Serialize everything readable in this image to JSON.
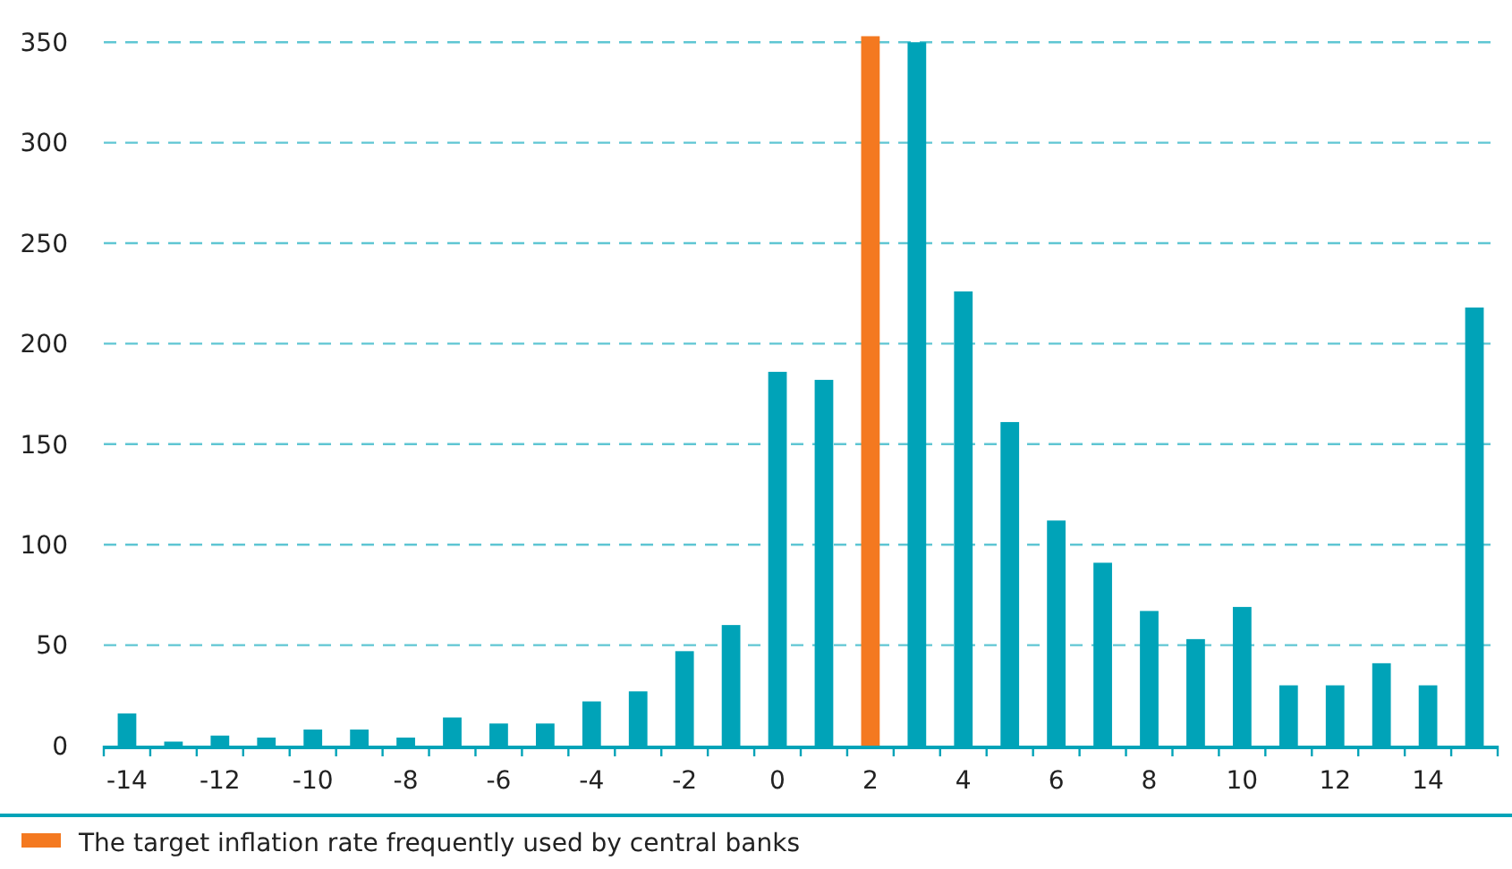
{
  "chart_data": {
    "type": "bar",
    "categories": [
      "-14",
      null,
      "-12",
      null,
      "-10",
      null,
      "-8",
      null,
      "-6",
      null,
      "-4",
      null,
      "-2",
      null,
      "0",
      null,
      "2",
      null,
      "4",
      null,
      "6",
      null,
      "8",
      null,
      "10",
      null,
      "12",
      null,
      "14",
      null
    ],
    "series": [
      {
        "color": "#00a3b8",
        "values": [
          16,
          2,
          5,
          4,
          8,
          8,
          4,
          14,
          11,
          11,
          22,
          27,
          47,
          60,
          186,
          182,
          null,
          350,
          226,
          161,
          112,
          91,
          67,
          53,
          69,
          30,
          30,
          41,
          30,
          218
        ]
      },
      {
        "name": "The target inflation rate frequently used by central banks",
        "color": "#f47920",
        "values": [
          null,
          null,
          null,
          null,
          null,
          null,
          null,
          null,
          null,
          null,
          null,
          null,
          null,
          null,
          null,
          null,
          353,
          null,
          null,
          null,
          null,
          null,
          null,
          null,
          null,
          null,
          null,
          null,
          null,
          null
        ]
      }
    ],
    "ylim": [
      0,
      355
    ],
    "yticks": [
      0,
      50,
      100,
      150,
      200,
      250,
      300,
      350
    ],
    "grid": "y",
    "legend": "bottom left"
  }
}
